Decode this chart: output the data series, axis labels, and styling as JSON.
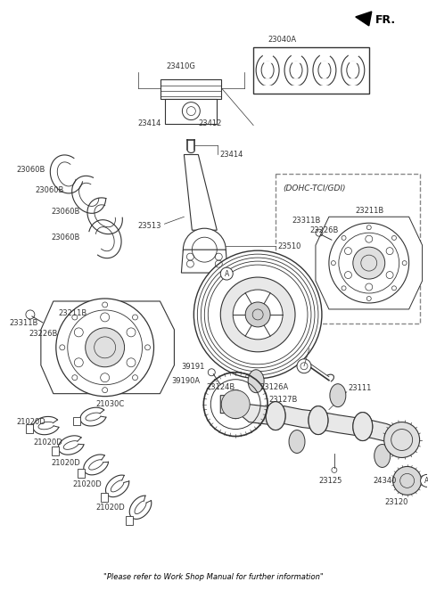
{
  "background_color": "#ffffff",
  "footer": "\"Please refer to Work Shop Manual for further information\"",
  "fr_label": "FR.",
  "dohc_label": "(DOHC-TCI/GDI)",
  "line_color": "#333333",
  "label_fontsize": 6.0
}
